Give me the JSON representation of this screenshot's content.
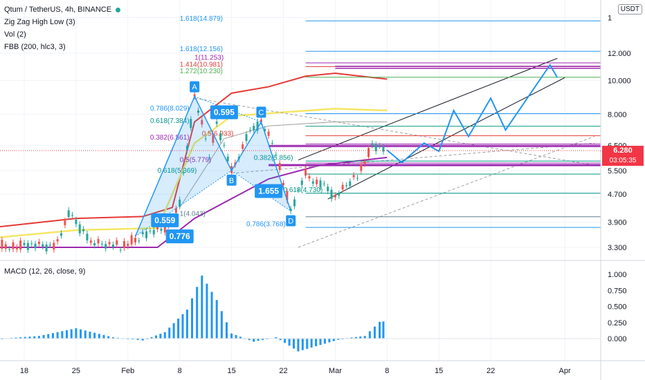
{
  "header": {
    "title": "Qtum / TetherUS, 4h, BINANCE",
    "indicators": [
      "Zig Zag High Low (3)",
      "Vol (2)",
      "FBB (200, hlc3, 3)"
    ],
    "currency_button": "USDT",
    "macd_title": "MACD (12, 26, close, 9)"
  },
  "colors": {
    "up": "#26a69a",
    "down": "#ef5350",
    "accent": "#2196f3",
    "price_line": "#f23645",
    "bb_outer": "#e53935",
    "bb_mid": "#f5e663",
    "bb_basis": "#9c27b0"
  },
  "current_price": {
    "label": "6.280",
    "countdown": "03:05:35",
    "value": 6.28
  },
  "chart_data": [
    {
      "type": "line",
      "title": "Qtum / TetherUS, 4h, BINANCE",
      "y_scale": "log",
      "y_ticks": [
        "1",
        "12.000",
        "10.000",
        "8.000",
        "6.500",
        "5.500",
        "4.700",
        "3.900",
        "3.300"
      ],
      "x_ticks": [
        "18",
        "25",
        "Feb",
        "8",
        "15",
        "22",
        "Mar",
        "8",
        "15",
        "22",
        "Apr"
      ],
      "zigzag_points": [
        {
          "label": "A",
          "date": "Feb 10",
          "price": 9.0
        },
        {
          "label": "B",
          "date": "Feb 15",
          "price": 5.5
        },
        {
          "label": "C",
          "date": "Feb 19",
          "price": 7.6
        },
        {
          "label": "D",
          "date": "Feb 23",
          "price": 4.2
        }
      ],
      "ratio_labels": [
        "0.595",
        "1.655",
        "0.559",
        "0.776"
      ],
      "fib_levels": [
        {
          "label": "1.618(14.879)",
          "value": 14.879
        },
        {
          "label": "1.618(12.156)",
          "value": 12.156
        },
        {
          "label": "1(11.253)",
          "value": 11.253
        },
        {
          "label": "1.414(10.981)",
          "value": 10.981
        },
        {
          "label": "1.272(10.230)",
          "value": 10.23
        },
        {
          "label": "0.786(8.029)",
          "value": 8.029
        },
        {
          "label": "0.618(7.384)",
          "value": 7.384
        },
        {
          "label": "0.5(6.933)",
          "value": 6.933
        },
        {
          "label": "0.382(6.561)",
          "value": 6.561
        },
        {
          "label": "0.5(5.779)",
          "value": 5.779
        },
        {
          "label": "0.382(5.856)",
          "value": 5.856
        },
        {
          "label": "0.618(5.369)",
          "value": 5.369
        },
        {
          "label": "0.618(4.730)",
          "value": 4.73
        },
        {
          "label": "1(4.043)",
          "value": 4.043
        },
        {
          "label": "0.786(3.768)",
          "value": 3.768
        }
      ],
      "projection_path": [
        {
          "date": "Mar 8",
          "price": 6.3
        },
        {
          "date": "Mar 10",
          "price": 5.8
        },
        {
          "date": "Mar 13",
          "price": 6.6
        },
        {
          "date": "Mar 15",
          "price": 6.25
        },
        {
          "date": "Mar 17",
          "price": 8.2
        },
        {
          "date": "Mar 19",
          "price": 6.9
        },
        {
          "date": "Mar 22",
          "price": 8.9
        },
        {
          "date": "Mar 24",
          "price": 7.2
        },
        {
          "date": "Mar 30",
          "price": 11.1
        },
        {
          "date": "Mar 31",
          "price": 10.2
        }
      ]
    },
    {
      "type": "bar",
      "title": "MACD (12, 26, close, 9)",
      "y_ticks": [
        "1.000",
        "0.750",
        "0.500",
        "0.250",
        "0.000"
      ],
      "x_ticks": [
        "18",
        "25",
        "Feb",
        "8",
        "15",
        "22",
        "Mar",
        "8",
        "15",
        "22",
        "Apr"
      ],
      "ylim": [
        -0.2,
        1.0
      ],
      "histogram": [
        {
          "date": "Jan 15",
          "value": 0.0
        },
        {
          "date": "Jan 20",
          "value": 0.04
        },
        {
          "date": "Jan 25",
          "value": 0.16
        },
        {
          "date": "Jan 30",
          "value": 0.02
        },
        {
          "date": "Feb 3",
          "value": -0.03
        },
        {
          "date": "Feb 6",
          "value": 0.1
        },
        {
          "date": "Feb 9",
          "value": 0.45
        },
        {
          "date": "Feb 11",
          "value": 0.98
        },
        {
          "date": "Feb 13",
          "value": 0.6
        },
        {
          "date": "Feb 15",
          "value": 0.08
        },
        {
          "date": "Feb 18",
          "value": -0.05
        },
        {
          "date": "Feb 21",
          "value": 0.02
        },
        {
          "date": "Feb 24",
          "value": -0.2
        },
        {
          "date": "Feb 27",
          "value": -0.1
        },
        {
          "date": "Mar 2",
          "value": 0.0
        },
        {
          "date": "Mar 5",
          "value": 0.04
        },
        {
          "date": "Mar 7",
          "value": 0.26
        },
        {
          "date": "Mar 8",
          "value": 0.27
        }
      ]
    }
  ]
}
